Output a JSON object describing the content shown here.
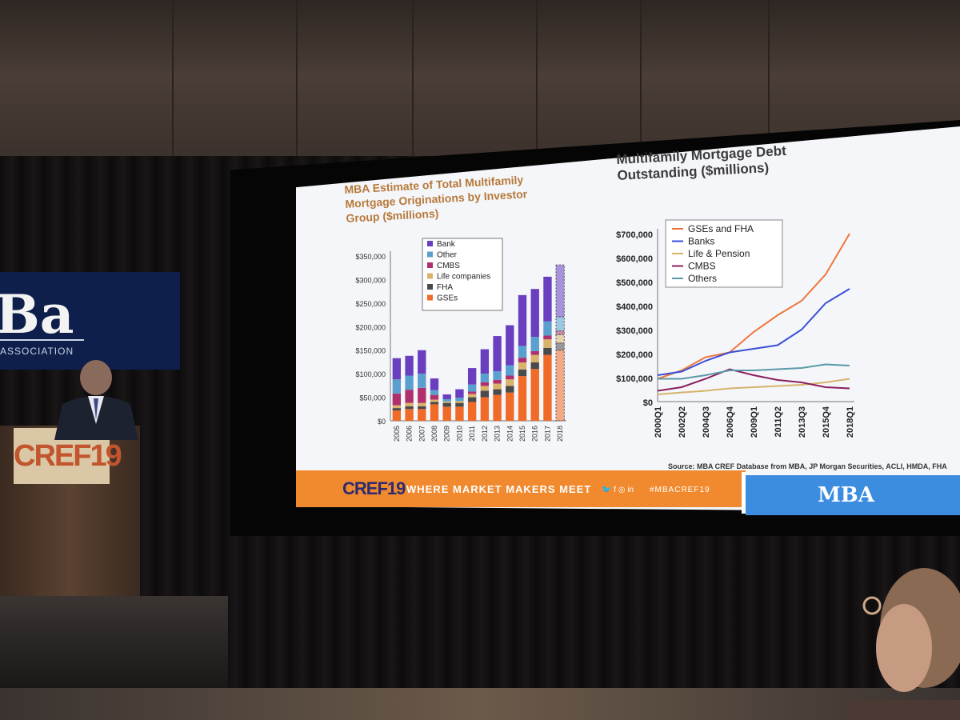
{
  "left_chart": {
    "title": "MBA Estimate of Total Multifamily Mortgage Originations by Investor Group ($millions)",
    "y_ticks": [
      "$350,000",
      "$300,000",
      "$250,000",
      "$200,000",
      "$150,000",
      "$100,000",
      "$50,000",
      "$0"
    ]
  },
  "right_chart": {
    "title": "Multifamily Mortgage Debt Outstanding ($millions)",
    "y_ticks": [
      "$700,000",
      "$600,000",
      "$500,000",
      "$400,000",
      "$300,000",
      "$200,000",
      "$100,000",
      "$0"
    ]
  },
  "source": "Source: MBA CREF Database from MBA, JP Morgan Securities, ACLI, HMDA, FHA",
  "footer": {
    "logo": "CREF19",
    "tagline": "WHERE MARKET MAKERS MEET",
    "hashtag": "#MBACREF19",
    "mba_logo": "MBA"
  },
  "banner": {
    "big": "Ba",
    "sub": "ASSOCIATION"
  },
  "podium_sign": "CREF19",
  "colors": {
    "bank": "#6a3fbf",
    "other": "#5aa0cf",
    "cmbs": "#b0306e",
    "life": "#d9b36b",
    "fha": "#4a4a4a",
    "gses": "#f06a28",
    "gses_fha_line": "#f0763a",
    "banks_line": "#3a4fd9",
    "life_line": "#d6b36a",
    "cmbs_line": "#8a1f5e",
    "others_line": "#5a9aa8"
  },
  "chart_data": [
    {
      "type": "bar",
      "stacked": true,
      "title": "MBA Estimate of Total Multifamily Mortgage Originations by Investor Group ($millions)",
      "categories": [
        "2005",
        "2006",
        "2007",
        "2008",
        "2009",
        "2010",
        "2011",
        "2012",
        "2013",
        "2014",
        "2015",
        "2016",
        "2017",
        "2018"
      ],
      "ylim": [
        0,
        350000
      ],
      "legend_position": "top-center",
      "series": [
        {
          "name": "GSEs",
          "values": [
            22000,
            25000,
            25000,
            35000,
            30000,
            30000,
            40000,
            50000,
            55000,
            60000,
            95000,
            110000,
            140000,
            150000
          ]
        },
        {
          "name": "FHA",
          "values": [
            5000,
            6000,
            6000,
            5000,
            8000,
            8000,
            10000,
            14000,
            12000,
            14000,
            14000,
            14000,
            15000,
            15000
          ]
        },
        {
          "name": "Life companies",
          "values": [
            6000,
            7000,
            7000,
            5000,
            3000,
            4000,
            7000,
            10000,
            12000,
            14000,
            15000,
            16000,
            18000,
            18000
          ]
        },
        {
          "name": "CMBS",
          "values": [
            25000,
            28000,
            32000,
            10000,
            0,
            0,
            5000,
            8000,
            8000,
            8000,
            10000,
            8000,
            8000,
            8000
          ]
        },
        {
          "name": "Other",
          "values": [
            30000,
            30000,
            30000,
            10000,
            5000,
            7000,
            15000,
            18000,
            18000,
            22000,
            25000,
            30000,
            30000,
            30000
          ]
        },
        {
          "name": "Bank",
          "values": [
            45000,
            42000,
            50000,
            25000,
            10000,
            18000,
            35000,
            52000,
            75000,
            85000,
            108000,
            102000,
            95000,
            110000
          ]
        }
      ]
    },
    {
      "type": "line",
      "title": "Multifamily Mortgage Debt Outstanding ($millions)",
      "x": [
        "2000Q1",
        "2002Q2",
        "2004Q3",
        "2006Q4",
        "2009Q1",
        "2011Q2",
        "2013Q3",
        "2015Q4",
        "2018Q1"
      ],
      "ylim": [
        0,
        700000
      ],
      "legend_position": "top-left",
      "series": [
        {
          "name": "GSEs and FHA",
          "values": [
            95000,
            130000,
            185000,
            205000,
            290000,
            360000,
            420000,
            530000,
            700000
          ]
        },
        {
          "name": "Banks",
          "values": [
            110000,
            125000,
            170000,
            205000,
            220000,
            235000,
            300000,
            410000,
            470000
          ]
        },
        {
          "name": "Life & Pension",
          "values": [
            30000,
            38000,
            45000,
            55000,
            60000,
            65000,
            70000,
            80000,
            95000
          ]
        },
        {
          "name": "CMBS",
          "values": [
            45000,
            60000,
            95000,
            135000,
            110000,
            90000,
            80000,
            60000,
            55000
          ]
        },
        {
          "name": "Others",
          "values": [
            95000,
            95000,
            110000,
            130000,
            130000,
            135000,
            140000,
            155000,
            150000
          ]
        }
      ]
    }
  ]
}
